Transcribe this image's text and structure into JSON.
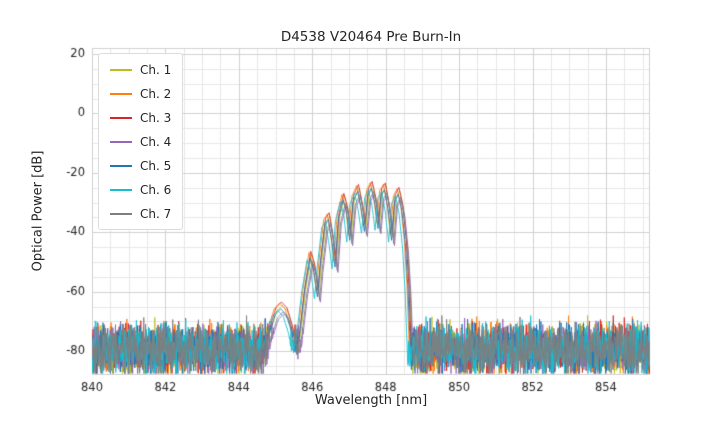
{
  "chart_data": {
    "type": "line",
    "title": "D4538 V20464 Pre Burn-In",
    "xlabel": "Wavelength [nm]",
    "ylabel": "Optical Power [dB]",
    "xlim": [
      840,
      855.2
    ],
    "ylim": [
      -88,
      22
    ],
    "x_ticks": [
      840,
      842,
      844,
      846,
      848,
      850,
      852,
      854
    ],
    "y_ticks": [
      20,
      0,
      -20,
      -40,
      -60,
      -80
    ],
    "grid": {
      "minor_x_step": 0.5,
      "minor_y_step": 5,
      "major_color": "#d0d0d0",
      "minor_color": "#e7e7e7"
    },
    "noise": {
      "mean": -79,
      "sd": 4,
      "min": -87.5,
      "max": -68
    },
    "sample_step": 0.01,
    "envelope": [
      [
        844.55,
        -92
      ],
      [
        844.8,
        -76
      ],
      [
        845.0,
        -68
      ],
      [
        845.15,
        -66
      ],
      [
        845.3,
        -68
      ],
      [
        845.45,
        -74
      ],
      [
        845.55,
        -82
      ],
      [
        845.65,
        -76
      ],
      [
        845.8,
        -60
      ],
      [
        845.95,
        -49
      ],
      [
        846.05,
        -53
      ],
      [
        846.15,
        -62
      ],
      [
        846.22,
        -52
      ],
      [
        846.35,
        -38
      ],
      [
        846.45,
        -36
      ],
      [
        846.55,
        -44
      ],
      [
        846.63,
        -52
      ],
      [
        846.72,
        -36
      ],
      [
        846.85,
        -29.5
      ],
      [
        846.95,
        -34
      ],
      [
        847.03,
        -43
      ],
      [
        847.12,
        -30
      ],
      [
        847.25,
        -26.5
      ],
      [
        847.35,
        -33
      ],
      [
        847.43,
        -40
      ],
      [
        847.52,
        -28
      ],
      [
        847.62,
        -25.5
      ],
      [
        847.72,
        -31
      ],
      [
        847.8,
        -39
      ],
      [
        847.88,
        -28
      ],
      [
        847.98,
        -26
      ],
      [
        848.08,
        -33
      ],
      [
        848.17,
        -43
      ],
      [
        848.25,
        -30
      ],
      [
        848.35,
        -27.5
      ],
      [
        848.45,
        -33
      ],
      [
        848.55,
        -45
      ],
      [
        848.62,
        -60
      ],
      [
        848.68,
        -80
      ],
      [
        848.72,
        -95
      ]
    ],
    "series": [
      {
        "name": "Ch. 1",
        "color": "#bcbd22",
        "dx": 0.03,
        "dy": 1.5,
        "seed": 11
      },
      {
        "name": "Ch. 2",
        "color": "#ff7f0e",
        "dx": -0.04,
        "dy": 2.2,
        "seed": 22
      },
      {
        "name": "Ch. 3",
        "color": "#d62728",
        "dx": 0.01,
        "dy": 2.6,
        "seed": 33
      },
      {
        "name": "Ch. 4",
        "color": "#9467bd",
        "dx": 0.07,
        "dy": -1.5,
        "seed": 44
      },
      {
        "name": "Ch. 5",
        "color": "#1f77b4",
        "dx": -0.01,
        "dy": 0.3,
        "seed": 55
      },
      {
        "name": "Ch. 6",
        "color": "#17becf",
        "dx": -0.09,
        "dy": -0.3,
        "seed": 66
      },
      {
        "name": "Ch. 7",
        "color": "#7f7f7f",
        "dx": 0.05,
        "dy": -0.8,
        "seed": 77
      }
    ],
    "legend_position": "top-left",
    "tick_label_color": "#262626"
  }
}
